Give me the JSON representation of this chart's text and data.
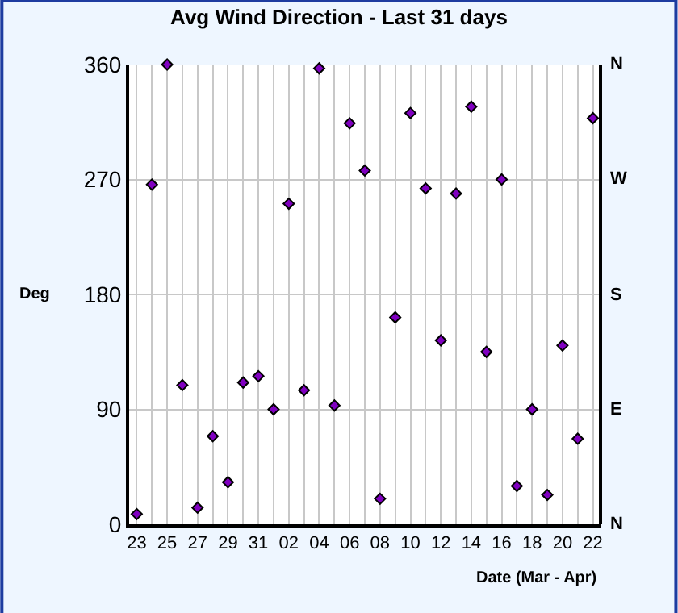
{
  "chart_data": {
    "type": "scatter",
    "title": "Avg Wind Direction - Last 31 days",
    "xlabel": "Date (Mar - Apr)",
    "ylabel": "Deg",
    "categories": [
      "23",
      null,
      "25",
      null,
      "27",
      null,
      "29",
      null,
      "31",
      null,
      "02",
      null,
      "04",
      null,
      "06",
      null,
      "08",
      null,
      "10",
      null,
      "12",
      null,
      "14",
      null,
      "16",
      null,
      "18",
      null,
      "20",
      null,
      "22"
    ],
    "series": [
      {
        "color": "#8000c0",
        "values": [
          8,
          266,
          360,
          109,
          13,
          69,
          33,
          111,
          116,
          90,
          251,
          105,
          357,
          93,
          314,
          277,
          20,
          162,
          322,
          263,
          144,
          259,
          327,
          135,
          270,
          30,
          90,
          23,
          140,
          67,
          318
        ]
      }
    ],
    "ylim": [
      0,
      360
    ],
    "yticks": [
      0,
      90,
      180,
      270,
      360
    ],
    "annotations": [
      "N",
      "E",
      "S",
      "W",
      "N"
    ],
    "grid": true,
    "marker": "diamond"
  }
}
